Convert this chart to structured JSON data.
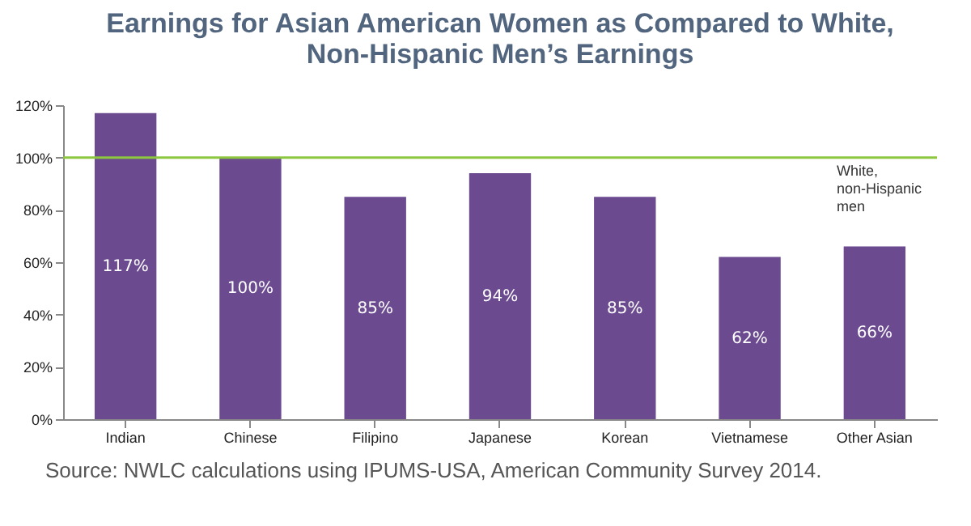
{
  "chart_data": {
    "type": "bar",
    "title": "Earnings for Asian American Women as Compared to White, Non-Hispanic Men’s Earnings",
    "categories": [
      "Indian",
      "Chinese",
      "Filipino",
      "Japanese",
      "Korean",
      "Vietnamese",
      "Other Asian"
    ],
    "values": [
      117,
      100,
      85,
      94,
      85,
      62,
      66
    ],
    "value_labels": [
      "117%",
      "100%",
      "85%",
      "94%",
      "85%",
      "62%",
      "66%"
    ],
    "color": "#6b4a90",
    "ylim": [
      0,
      120
    ],
    "yticks": [
      {
        "value": 0,
        "label": "0%"
      },
      {
        "value": 20,
        "label": "20%"
      },
      {
        "value": 40,
        "label": "40%"
      },
      {
        "value": 60,
        "label": "60%"
      },
      {
        "value": 80,
        "label": "80%"
      },
      {
        "value": 100,
        "label": "100%"
      },
      {
        "value": 120,
        "label": "120%"
      }
    ],
    "ref_lines": [
      {
        "axis": "y",
        "value": 100,
        "label": "White, non-Hispanic men",
        "color": "#8dc63f"
      }
    ],
    "annotations": [
      "Source: NWLC calculations using IPUMS-USA, American Community Survey 2014."
    ],
    "grid": false
  }
}
